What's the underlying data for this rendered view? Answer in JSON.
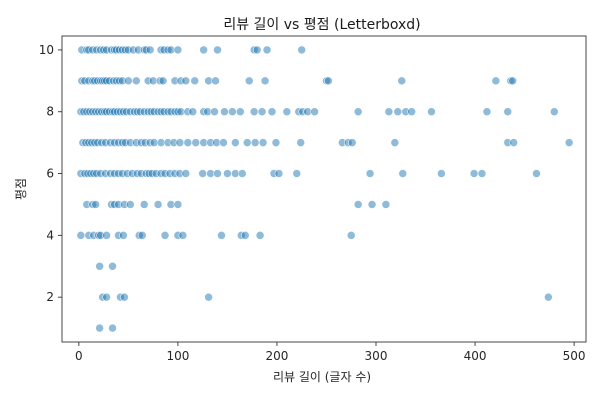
{
  "chart_data": {
    "type": "scatter",
    "title": "리뷰 길이 vs 평점 (Letterboxd)",
    "xlabel": "리뷰 길이 (글자 수)",
    "ylabel": "평점",
    "xlim": [
      -17,
      512
    ],
    "ylim": [
      0.55,
      10.45
    ],
    "xticks": [
      0,
      100,
      200,
      300,
      400,
      500
    ],
    "yticks": [
      2,
      4,
      6,
      8,
      10
    ],
    "grid": false,
    "color": "#1f77b4",
    "series": [
      {
        "points": [
          [
            3,
            10
          ],
          [
            8,
            10
          ],
          [
            10,
            10
          ],
          [
            14,
            10
          ],
          [
            18,
            10
          ],
          [
            22,
            10
          ],
          [
            25,
            10
          ],
          [
            28,
            10
          ],
          [
            33,
            10
          ],
          [
            36,
            10
          ],
          [
            38,
            10
          ],
          [
            41,
            10
          ],
          [
            44,
            10
          ],
          [
            47,
            10
          ],
          [
            50,
            10
          ],
          [
            55,
            10
          ],
          [
            60,
            10
          ],
          [
            66,
            10
          ],
          [
            68,
            10
          ],
          [
            72,
            10
          ],
          [
            83,
            10
          ],
          [
            86,
            10
          ],
          [
            90,
            10
          ],
          [
            93,
            10
          ],
          [
            100,
            10
          ],
          [
            126,
            10
          ],
          [
            140,
            10
          ],
          [
            177,
            10
          ],
          [
            180,
            10
          ],
          [
            190,
            10
          ],
          [
            225,
            10
          ],
          [
            3,
            9
          ],
          [
            6,
            9
          ],
          [
            10,
            9
          ],
          [
            14,
            9
          ],
          [
            16,
            9
          ],
          [
            19,
            9
          ],
          [
            22,
            9
          ],
          [
            24,
            9
          ],
          [
            26,
            9
          ],
          [
            28,
            9
          ],
          [
            31,
            9
          ],
          [
            35,
            9
          ],
          [
            38,
            9
          ],
          [
            41,
            9
          ],
          [
            44,
            9
          ],
          [
            50,
            9
          ],
          [
            58,
            9
          ],
          [
            70,
            9
          ],
          [
            75,
            9
          ],
          [
            82,
            9
          ],
          [
            85,
            9
          ],
          [
            97,
            9
          ],
          [
            103,
            9
          ],
          [
            108,
            9
          ],
          [
            117,
            9
          ],
          [
            131,
            9
          ],
          [
            138,
            9
          ],
          [
            172,
            9
          ],
          [
            188,
            9
          ],
          [
            250,
            9
          ],
          [
            252,
            9
          ],
          [
            326,
            9
          ],
          [
            421,
            9
          ],
          [
            436,
            9
          ],
          [
            438,
            9
          ],
          [
            2,
            8
          ],
          [
            5,
            8
          ],
          [
            8,
            8
          ],
          [
            11,
            8
          ],
          [
            14,
            8
          ],
          [
            17,
            8
          ],
          [
            20,
            8
          ],
          [
            23,
            8
          ],
          [
            26,
            8
          ],
          [
            28,
            8
          ],
          [
            31,
            8
          ],
          [
            34,
            8
          ],
          [
            36,
            8
          ],
          [
            39,
            8
          ],
          [
            42,
            8
          ],
          [
            45,
            8
          ],
          [
            48,
            8
          ],
          [
            52,
            8
          ],
          [
            56,
            8
          ],
          [
            59,
            8
          ],
          [
            62,
            8
          ],
          [
            66,
            8
          ],
          [
            70,
            8
          ],
          [
            73,
            8
          ],
          [
            76,
            8
          ],
          [
            80,
            8
          ],
          [
            83,
            8
          ],
          [
            86,
            8
          ],
          [
            90,
            8
          ],
          [
            93,
            8
          ],
          [
            97,
            8
          ],
          [
            100,
            8
          ],
          [
            103,
            8
          ],
          [
            110,
            8
          ],
          [
            115,
            8
          ],
          [
            126,
            8
          ],
          [
            130,
            8
          ],
          [
            137,
            8
          ],
          [
            147,
            8
          ],
          [
            155,
            8
          ],
          [
            163,
            8
          ],
          [
            177,
            8
          ],
          [
            185,
            8
          ],
          [
            195,
            8
          ],
          [
            210,
            8
          ],
          [
            222,
            8
          ],
          [
            226,
            8
          ],
          [
            231,
            8
          ],
          [
            238,
            8
          ],
          [
            282,
            8
          ],
          [
            313,
            8
          ],
          [
            322,
            8
          ],
          [
            330,
            8
          ],
          [
            336,
            8
          ],
          [
            356,
            8
          ],
          [
            412,
            8
          ],
          [
            433,
            8
          ],
          [
            480,
            8
          ],
          [
            4,
            7
          ],
          [
            7,
            7
          ],
          [
            10,
            7
          ],
          [
            13,
            7
          ],
          [
            16,
            7
          ],
          [
            19,
            7
          ],
          [
            23,
            7
          ],
          [
            27,
            7
          ],
          [
            32,
            7
          ],
          [
            36,
            7
          ],
          [
            40,
            7
          ],
          [
            44,
            7
          ],
          [
            47,
            7
          ],
          [
            52,
            7
          ],
          [
            58,
            7
          ],
          [
            63,
            7
          ],
          [
            67,
            7
          ],
          [
            72,
            7
          ],
          [
            76,
            7
          ],
          [
            83,
            7
          ],
          [
            90,
            7
          ],
          [
            96,
            7
          ],
          [
            102,
            7
          ],
          [
            110,
            7
          ],
          [
            118,
            7
          ],
          [
            126,
            7
          ],
          [
            133,
            7
          ],
          [
            139,
            7
          ],
          [
            146,
            7
          ],
          [
            158,
            7
          ],
          [
            170,
            7
          ],
          [
            178,
            7
          ],
          [
            186,
            7
          ],
          [
            199,
            7
          ],
          [
            224,
            7
          ],
          [
            266,
            7
          ],
          [
            272,
            7
          ],
          [
            276,
            7
          ],
          [
            319,
            7
          ],
          [
            433,
            7
          ],
          [
            439,
            7
          ],
          [
            495,
            7
          ],
          [
            2,
            6
          ],
          [
            6,
            6
          ],
          [
            9,
            6
          ],
          [
            12,
            6
          ],
          [
            15,
            6
          ],
          [
            18,
            6
          ],
          [
            22,
            6
          ],
          [
            27,
            6
          ],
          [
            32,
            6
          ],
          [
            36,
            6
          ],
          [
            40,
            6
          ],
          [
            44,
            6
          ],
          [
            49,
            6
          ],
          [
            54,
            6
          ],
          [
            59,
            6
          ],
          [
            63,
            6
          ],
          [
            68,
            6
          ],
          [
            71,
            6
          ],
          [
            74,
            6
          ],
          [
            78,
            6
          ],
          [
            83,
            6
          ],
          [
            87,
            6
          ],
          [
            92,
            6
          ],
          [
            97,
            6
          ],
          [
            102,
            6
          ],
          [
            108,
            6
          ],
          [
            125,
            6
          ],
          [
            133,
            6
          ],
          [
            140,
            6
          ],
          [
            150,
            6
          ],
          [
            158,
            6
          ],
          [
            165,
            6
          ],
          [
            197,
            6
          ],
          [
            202,
            6
          ],
          [
            220,
            6
          ],
          [
            294,
            6
          ],
          [
            327,
            6
          ],
          [
            366,
            6
          ],
          [
            399,
            6
          ],
          [
            407,
            6
          ],
          [
            462,
            6
          ],
          [
            8,
            5
          ],
          [
            14,
            5
          ],
          [
            17,
            5
          ],
          [
            33,
            5
          ],
          [
            36,
            5
          ],
          [
            40,
            5
          ],
          [
            46,
            5
          ],
          [
            52,
            5
          ],
          [
            66,
            5
          ],
          [
            80,
            5
          ],
          [
            93,
            5
          ],
          [
            100,
            5
          ],
          [
            282,
            5
          ],
          [
            296,
            5
          ],
          [
            310,
            5
          ],
          [
            2,
            4
          ],
          [
            10,
            4
          ],
          [
            15,
            4
          ],
          [
            20,
            4
          ],
          [
            22,
            4
          ],
          [
            28,
            4
          ],
          [
            40,
            4
          ],
          [
            45,
            4
          ],
          [
            61,
            4
          ],
          [
            64,
            4
          ],
          [
            87,
            4
          ],
          [
            100,
            4
          ],
          [
            105,
            4
          ],
          [
            144,
            4
          ],
          [
            164,
            4
          ],
          [
            168,
            4
          ],
          [
            183,
            4
          ],
          [
            275,
            4
          ],
          [
            21,
            3
          ],
          [
            34,
            3
          ],
          [
            24,
            2
          ],
          [
            28,
            2
          ],
          [
            42,
            2
          ],
          [
            46,
            2
          ],
          [
            131,
            2
          ],
          [
            474,
            2
          ],
          [
            21,
            1
          ],
          [
            34,
            1
          ]
        ]
      }
    ]
  }
}
